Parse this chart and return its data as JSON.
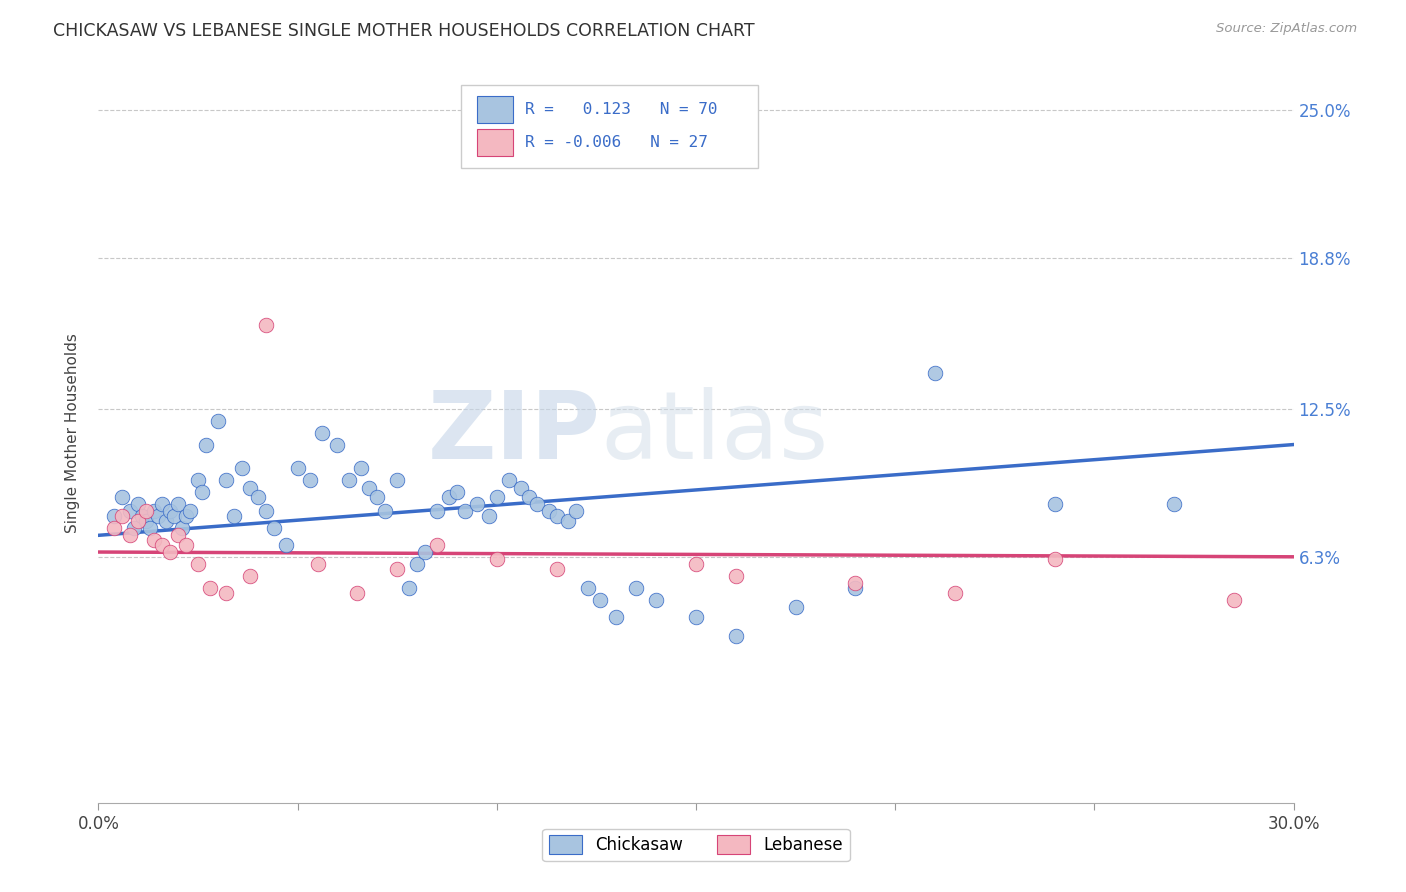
{
  "title": "CHICKASAW VS LEBANESE SINGLE MOTHER HOUSEHOLDS CORRELATION CHART",
  "source": "Source: ZipAtlas.com",
  "ylabel": "Single Mother Households",
  "xlim": [
    0.0,
    0.3
  ],
  "ylim": [
    -0.04,
    0.27
  ],
  "ytick_right_labels": [
    "25.0%",
    "18.8%",
    "12.5%",
    "6.3%"
  ],
  "ytick_right_values": [
    0.25,
    0.188,
    0.125,
    0.063
  ],
  "chickasaw_color": "#a8c4e0",
  "lebanese_color": "#f4b8c1",
  "trendline_chickasaw_color": "#3a6cc8",
  "trendline_lebanese_color": "#d64477",
  "R_chickasaw": "0.123",
  "N_chickasaw": "70",
  "R_lebanese": "-0.006",
  "N_lebanese": "27",
  "watermark_zip": "ZIP",
  "watermark_atlas": "atlas",
  "chickasaw_x": [
    0.004,
    0.006,
    0.008,
    0.009,
    0.01,
    0.011,
    0.012,
    0.013,
    0.014,
    0.015,
    0.016,
    0.017,
    0.018,
    0.019,
    0.02,
    0.021,
    0.022,
    0.023,
    0.025,
    0.026,
    0.027,
    0.03,
    0.032,
    0.034,
    0.036,
    0.038,
    0.04,
    0.042,
    0.044,
    0.047,
    0.05,
    0.053,
    0.056,
    0.06,
    0.063,
    0.066,
    0.068,
    0.07,
    0.072,
    0.075,
    0.078,
    0.08,
    0.082,
    0.085,
    0.088,
    0.09,
    0.092,
    0.095,
    0.098,
    0.1,
    0.103,
    0.106,
    0.108,
    0.11,
    0.113,
    0.115,
    0.118,
    0.12,
    0.123,
    0.126,
    0.13,
    0.135,
    0.14,
    0.15,
    0.16,
    0.175,
    0.19,
    0.21,
    0.24,
    0.27
  ],
  "chickasaw_y": [
    0.08,
    0.088,
    0.082,
    0.075,
    0.085,
    0.08,
    0.078,
    0.075,
    0.082,
    0.08,
    0.085,
    0.078,
    0.082,
    0.08,
    0.085,
    0.075,
    0.08,
    0.082,
    0.095,
    0.09,
    0.11,
    0.12,
    0.095,
    0.08,
    0.1,
    0.092,
    0.088,
    0.082,
    0.075,
    0.068,
    0.1,
    0.095,
    0.115,
    0.11,
    0.095,
    0.1,
    0.092,
    0.088,
    0.082,
    0.095,
    0.05,
    0.06,
    0.065,
    0.082,
    0.088,
    0.09,
    0.082,
    0.085,
    0.08,
    0.088,
    0.095,
    0.092,
    0.088,
    0.085,
    0.082,
    0.08,
    0.078,
    0.082,
    0.05,
    0.045,
    0.038,
    0.05,
    0.045,
    0.038,
    0.03,
    0.042,
    0.05,
    0.14,
    0.085,
    0.085
  ],
  "lebanese_x": [
    0.004,
    0.006,
    0.008,
    0.01,
    0.012,
    0.014,
    0.016,
    0.018,
    0.02,
    0.022,
    0.025,
    0.028,
    0.032,
    0.038,
    0.042,
    0.055,
    0.065,
    0.075,
    0.085,
    0.1,
    0.115,
    0.15,
    0.16,
    0.19,
    0.215,
    0.24,
    0.285
  ],
  "lebanese_y": [
    0.075,
    0.08,
    0.072,
    0.078,
    0.082,
    0.07,
    0.068,
    0.065,
    0.072,
    0.068,
    0.06,
    0.05,
    0.048,
    0.055,
    0.16,
    0.06,
    0.048,
    0.058,
    0.068,
    0.062,
    0.058,
    0.06,
    0.055,
    0.052,
    0.048,
    0.062,
    0.045
  ]
}
